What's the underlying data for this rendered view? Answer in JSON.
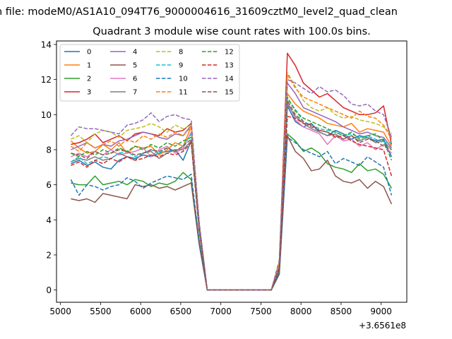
{
  "chart_data": {
    "type": "line",
    "suptitle": "n file: modeM0/AS1A10_094T76_9000004616_31609cztM0_level2_quad_clean",
    "title": "Quadrant 3 module wise count rates with 100.0s bins.",
    "xlabel": "",
    "ylabel": "",
    "offset_text": "+3.6561e8",
    "xlim": [
      4950,
      9320
    ],
    "ylim": [
      -0.7,
      14.2
    ],
    "x_ticks": [
      5000,
      5500,
      6000,
      6500,
      7000,
      7500,
      8000,
      8500,
      9000
    ],
    "y_ticks": [
      0,
      2,
      4,
      6,
      8,
      10,
      12,
      14
    ],
    "grid": false,
    "legend": {
      "placement": "top-left",
      "columns": 4
    },
    "x": [
      5130,
      5230,
      5330,
      5430,
      5530,
      5630,
      5730,
      5830,
      5930,
      6030,
      6130,
      6230,
      6330,
      6430,
      6530,
      6630,
      6730,
      6830,
      6930,
      7030,
      7130,
      7230,
      7330,
      7430,
      7530,
      7630,
      7730,
      7830,
      7930,
      8030,
      8130,
      8230,
      8330,
      8430,
      8530,
      8630,
      8730,
      8830,
      8930,
      9030,
      9130
    ],
    "series": [
      {
        "name": "0",
        "color": "#1f77b4",
        "dash": "solid",
        "values": [
          7.2,
          7.4,
          7.1,
          7.3,
          7.0,
          6.9,
          7.4,
          7.6,
          7.5,
          7.7,
          7.6,
          7.8,
          7.9,
          8.0,
          7.4,
          8.5,
          3.5,
          0,
          0,
          0,
          0,
          0,
          0,
          0,
          0,
          0,
          1.2,
          10.5,
          9.6,
          9.3,
          9.5,
          9.0,
          8.8,
          9.1,
          8.9,
          8.6,
          8.8,
          8.7,
          8.5,
          8.6,
          7.6
        ]
      },
      {
        "name": "1",
        "color": "#ff7f0e",
        "dash": "solid",
        "values": [
          8.5,
          8.1,
          7.8,
          7.9,
          8.3,
          8.0,
          8.4,
          7.8,
          8.2,
          8.1,
          8.2,
          7.7,
          8.0,
          8.4,
          8.2,
          9.3,
          3.8,
          0,
          0,
          0,
          0,
          0,
          0,
          0,
          0,
          0,
          1.5,
          11.2,
          10.6,
          10.2,
          10.0,
          9.8,
          9.5,
          9.4,
          9.3,
          9.5,
          9.0,
          9.2,
          9.1,
          9.0,
          8.2
        ]
      },
      {
        "name": "2",
        "color": "#2ca02c",
        "dash": "solid",
        "values": [
          6.1,
          6.0,
          6.0,
          6.5,
          6.0,
          6.1,
          6.2,
          6.0,
          6.3,
          6.2,
          5.9,
          6.1,
          6.0,
          6.2,
          6.7,
          6.3,
          2.8,
          0,
          0,
          0,
          0,
          0,
          0,
          0,
          0,
          0,
          1.0,
          8.9,
          8.5,
          7.9,
          8.1,
          7.8,
          7.2,
          7.0,
          6.9,
          6.7,
          7.2,
          6.8,
          6.9,
          6.6,
          5.8
        ]
      },
      {
        "name": "3",
        "color": "#d62728",
        "dash": "solid",
        "values": [
          8.3,
          8.4,
          8.6,
          8.9,
          8.4,
          8.6,
          8.8,
          8.5,
          8.9,
          9.0,
          8.9,
          8.8,
          9.2,
          9.0,
          9.1,
          9.5,
          3.8,
          0,
          0,
          0,
          0,
          0,
          0,
          0,
          0,
          0,
          1.6,
          13.5,
          12.8,
          11.8,
          11.4,
          11.0,
          11.2,
          10.8,
          10.4,
          10.2,
          10.0,
          10.0,
          10.1,
          10.5,
          8.3
        ]
      },
      {
        "name": "4",
        "color": "#9467bd",
        "dash": "solid",
        "values": [
          8.0,
          8.2,
          8.4,
          8.1,
          8.3,
          8.2,
          8.5,
          8.6,
          8.8,
          9.0,
          8.9,
          8.7,
          8.6,
          8.9,
          8.8,
          9.4,
          3.8,
          0,
          0,
          0,
          0,
          0,
          0,
          0,
          0,
          0,
          1.5,
          11.8,
          11.2,
          10.4,
          10.2,
          10.0,
          9.8,
          9.6,
          9.3,
          9.1,
          8.9,
          9.0,
          8.8,
          8.7,
          8.1
        ]
      },
      {
        "name": "5",
        "color": "#8c564b",
        "dash": "solid",
        "values": [
          5.2,
          5.1,
          5.2,
          5.0,
          5.5,
          5.4,
          5.3,
          5.2,
          6.0,
          5.9,
          6.0,
          5.8,
          5.9,
          5.7,
          5.9,
          6.1,
          2.6,
          0,
          0,
          0,
          0,
          0,
          0,
          0,
          0,
          0,
          0.9,
          8.8,
          7.9,
          7.5,
          6.8,
          6.9,
          7.4,
          6.5,
          6.2,
          6.1,
          6.3,
          5.8,
          6.2,
          5.9,
          4.9
        ]
      },
      {
        "name": "6",
        "color": "#e377c2",
        "dash": "solid",
        "values": [
          7.6,
          7.8,
          7.6,
          7.9,
          7.7,
          8.0,
          7.7,
          7.8,
          7.9,
          8.1,
          7.6,
          8.0,
          8.2,
          7.8,
          8.1,
          9.0,
          3.6,
          0,
          0,
          0,
          0,
          0,
          0,
          0,
          0,
          0,
          1.4,
          10.8,
          9.7,
          9.3,
          9.1,
          8.9,
          8.3,
          8.8,
          8.5,
          8.6,
          8.2,
          8.4,
          8.0,
          8.3,
          7.8
        ]
      },
      {
        "name": "7",
        "color": "#7f7f7f",
        "dash": "solid",
        "values": [
          7.3,
          7.5,
          7.4,
          7.6,
          7.4,
          7.5,
          7.8,
          7.6,
          7.4,
          7.8,
          7.9,
          7.5,
          7.8,
          8.0,
          8.0,
          8.5,
          3.5,
          0,
          0,
          0,
          0,
          0,
          0,
          0,
          0,
          0,
          1.3,
          10.6,
          9.9,
          9.5,
          9.2,
          9.0,
          8.8,
          8.9,
          8.6,
          8.8,
          8.5,
          8.7,
          8.4,
          8.5,
          8.0
        ]
      },
      {
        "name": "8",
        "color": "#bcbd22",
        "dash": "dashed",
        "values": [
          8.6,
          8.8,
          8.4,
          8.9,
          9.1,
          9.0,
          8.7,
          9.1,
          9.2,
          9.3,
          9.5,
          9.3,
          9.0,
          9.4,
          9.2,
          9.4,
          3.8,
          0,
          0,
          0,
          0,
          0,
          0,
          0,
          0,
          0,
          1.6,
          12.4,
          11.6,
          10.8,
          10.4,
          10.2,
          10.4,
          10.0,
          9.8,
          9.9,
          9.7,
          9.6,
          9.5,
          9.3,
          8.9
        ]
      },
      {
        "name": "9",
        "color": "#17becf",
        "dash": "dashed",
        "values": [
          7.3,
          7.6,
          7.2,
          7.4,
          7.6,
          7.5,
          7.8,
          7.9,
          7.6,
          7.8,
          8.0,
          7.8,
          8.1,
          7.9,
          8.2,
          8.9,
          3.6,
          0,
          0,
          0,
          0,
          0,
          0,
          0,
          0,
          0,
          1.4,
          10.9,
          10.3,
          9.6,
          9.4,
          9.2,
          9.1,
          9.0,
          8.8,
          8.9,
          8.7,
          8.8,
          8.6,
          8.4,
          8.4
        ]
      },
      {
        "name": "10",
        "color": "#1f77b4",
        "dash": "dashed",
        "values": [
          6.3,
          5.4,
          6.0,
          5.9,
          5.7,
          5.9,
          6.0,
          6.4,
          6.2,
          5.8,
          6.1,
          6.3,
          6.5,
          6.4,
          6.3,
          6.6,
          2.8,
          0,
          0,
          0,
          0,
          0,
          0,
          0,
          0,
          0,
          1.0,
          8.7,
          8.4,
          8.0,
          7.8,
          7.6,
          7.9,
          7.2,
          7.5,
          7.3,
          7.1,
          7.6,
          7.3,
          7.0,
          5.4
        ]
      },
      {
        "name": "11",
        "color": "#ff7f0e",
        "dash": "dashed",
        "values": [
          8.2,
          7.9,
          8.4,
          8.1,
          8.3,
          8.5,
          8.2,
          8.6,
          8.4,
          8.8,
          8.6,
          8.9,
          8.7,
          9.0,
          8.8,
          9.3,
          3.8,
          0,
          0,
          0,
          0,
          0,
          0,
          0,
          0,
          0,
          1.5,
          12.3,
          11.5,
          11.0,
          10.8,
          10.6,
          10.4,
          10.2,
          10.0,
          9.8,
          10.2,
          9.9,
          9.8,
          9.4,
          8.6
        ]
      },
      {
        "name": "12",
        "color": "#2ca02c",
        "dash": "dashed",
        "values": [
          7.8,
          7.6,
          7.9,
          7.7,
          8.0,
          7.8,
          8.1,
          7.9,
          8.2,
          8.0,
          8.3,
          8.1,
          8.4,
          8.2,
          8.5,
          8.7,
          3.5,
          0,
          0,
          0,
          0,
          0,
          0,
          0,
          0,
          0,
          1.3,
          11.0,
          10.2,
          9.8,
          9.6,
          9.4,
          9.2,
          9.0,
          8.8,
          9.0,
          8.6,
          8.8,
          8.9,
          8.5,
          7.4
        ]
      },
      {
        "name": "13",
        "color": "#d62728",
        "dash": "dashed",
        "values": [
          7.1,
          7.3,
          7.0,
          7.4,
          7.2,
          7.5,
          7.3,
          7.6,
          7.4,
          7.5,
          7.7,
          7.6,
          7.8,
          7.7,
          7.9,
          8.4,
          3.4,
          0,
          0,
          0,
          0,
          0,
          0,
          0,
          0,
          0,
          1.2,
          9.9,
          9.8,
          9.5,
          9.4,
          9.1,
          9.0,
          8.7,
          8.8,
          8.5,
          8.3,
          8.2,
          8.1,
          8.0,
          6.5
        ]
      },
      {
        "name": "14",
        "color": "#9467bd",
        "dash": "dashed",
        "values": [
          8.8,
          9.3,
          9.2,
          9.2,
          9.1,
          9.0,
          8.9,
          9.4,
          9.5,
          9.7,
          10.1,
          9.6,
          9.9,
          10.0,
          9.8,
          9.7,
          3.9,
          0,
          0,
          0,
          0,
          0,
          0,
          0,
          0,
          0,
          1.7,
          12.0,
          11.8,
          11.5,
          11.2,
          11.6,
          11.3,
          11.4,
          11.1,
          10.6,
          10.5,
          10.6,
          10.2,
          10.0,
          8.7
        ]
      },
      {
        "name": "15",
        "color": "#8c564b",
        "dash": "dashed",
        "values": [
          7.8,
          7.7,
          7.5,
          7.9,
          7.7,
          7.8,
          8.0,
          7.9,
          7.7,
          7.8,
          8.0,
          7.9,
          8.1,
          7.9,
          8.2,
          8.6,
          3.5,
          0,
          0,
          0,
          0,
          0,
          0,
          0,
          0,
          0,
          1.3,
          10.8,
          10.0,
          9.6,
          9.3,
          9.1,
          9.0,
          8.8,
          8.6,
          8.8,
          8.4,
          8.6,
          8.5,
          8.2,
          8.0
        ]
      }
    ]
  }
}
